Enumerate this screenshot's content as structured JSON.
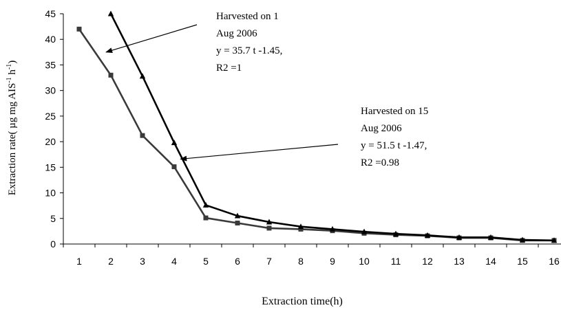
{
  "chart_data": {
    "type": "line",
    "xlabel": "Extraction time(h)",
    "ylabel": "Extraction rate( µg mg AIS",
    "ylabel_sup1": "-1",
    "ylabel_mid": " h",
    "ylabel_sup2": "-1",
    "ylabel_end": ")",
    "x": [
      1,
      2,
      3,
      4,
      5,
      6,
      7,
      8,
      9,
      10,
      11,
      12,
      13,
      14,
      15,
      16
    ],
    "ylim": [
      0,
      45
    ],
    "yticks": [
      0,
      5,
      10,
      15,
      20,
      25,
      30,
      35,
      40,
      45
    ],
    "grid": false,
    "series": [
      {
        "marker": "square",
        "color": "#3a3a3a",
        "values": [
          42,
          33,
          21.2,
          15.1,
          5.1,
          4.1,
          3.1,
          2.9,
          2.6,
          2.1,
          1.8,
          1.6,
          1.2,
          1.2,
          0.7,
          0.7
        ]
      },
      {
        "marker": "triangle",
        "color": "#000000",
        "values": [
          null,
          45,
          32.8,
          19.8,
          7.6,
          5.5,
          4.3,
          3.4,
          2.9,
          2.4,
          2.0,
          1.7,
          1.3,
          1.3,
          0.8,
          0.7
        ]
      }
    ],
    "annotations": [
      {
        "lines": [
          "Harvested on 1",
          "Aug 2006",
          "y = 35.7 t -1.45,",
          "R2 =1"
        ],
        "arrow_from": [
          1.9,
          40.5
        ],
        "arrow_to": [
          1.85,
          37.5
        ]
      },
      {
        "lines": [
          "Harvested on 15",
          "Aug 2006",
          "y = 51.5 t -1.47,",
          "R2 =0.98"
        ],
        "arrow_from": [
          5.4,
          19.2
        ],
        "arrow_to": [
          4.2,
          16.6
        ]
      }
    ]
  }
}
